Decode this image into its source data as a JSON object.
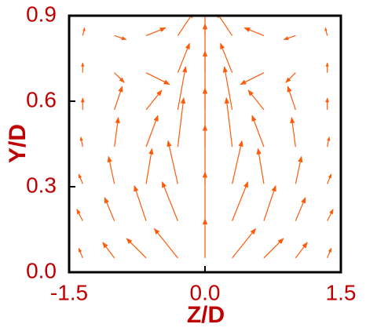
{
  "chart_data": {
    "type": "quiver",
    "xlabel": "Z/D",
    "ylabel": "Y/D",
    "xlim": [
      -1.5,
      1.5
    ],
    "ylim": [
      0,
      0.9
    ],
    "xticks": [
      -1.5,
      {
        "value": 0,
        "label": "0.0"
      },
      1.5
    ],
    "yticks": [
      {
        "value": 0,
        "label": "0.0"
      },
      0.3,
      0.6,
      0.9
    ],
    "color": "#ff5a0a",
    "x": [
      -1.35,
      -1.0,
      -0.65,
      -0.3,
      0,
      0.3,
      0.65,
      1.0,
      1.35,
      -1.35,
      -1.0,
      -0.65,
      -0.3,
      0,
      0.3,
      0.65,
      1.0,
      1.35,
      -1.35,
      -1.0,
      -0.65,
      -0.3,
      0,
      0.3,
      0.65,
      1.0,
      1.35,
      -1.35,
      -1.0,
      -0.65,
      -0.3,
      0,
      0.3,
      0.65,
      1.0,
      1.35,
      -1.35,
      -1.0,
      -0.65,
      -0.3,
      0,
      0.3,
      0.65,
      1.0,
      1.35,
      -1.35,
      -1.0,
      -0.65,
      -0.3,
      0,
      0.3,
      0.65,
      1.0,
      1.35,
      -1.35,
      -1.0,
      -0.65,
      -0.3,
      0,
      0.3,
      0.65,
      1.0,
      1.35
    ],
    "y": [
      0.05,
      0.05,
      0.05,
      0.05,
      0.05,
      0.05,
      0.05,
      0.05,
      0.05,
      0.18,
      0.18,
      0.18,
      0.18,
      0.18,
      0.18,
      0.18,
      0.18,
      0.18,
      0.31,
      0.31,
      0.31,
      0.31,
      0.31,
      0.31,
      0.31,
      0.31,
      0.31,
      0.44,
      0.44,
      0.44,
      0.44,
      0.44,
      0.44,
      0.44,
      0.44,
      0.44,
      0.57,
      0.57,
      0.57,
      0.57,
      0.57,
      0.57,
      0.57,
      0.57,
      0.57,
      0.7,
      0.7,
      0.7,
      0.7,
      0.7,
      0.7,
      0.7,
      0.7,
      0.7,
      0.83,
      0.83,
      0.83,
      0.83,
      0.83,
      0.83,
      0.83,
      0.83,
      0.83
    ],
    "u": [
      -0.2,
      -0.6,
      -1.0,
      -1.2,
      0,
      1.2,
      1.0,
      0.6,
      0.2,
      -0.3,
      -0.5,
      -0.6,
      -0.8,
      0,
      0.8,
      0.6,
      0.5,
      0.3,
      -0.2,
      -0.3,
      0.3,
      -0.5,
      0,
      0.5,
      -0.3,
      0.3,
      0.2,
      -0.1,
      0.2,
      0.6,
      0.3,
      0,
      -0.3,
      -0.6,
      -0.2,
      0.1,
      0,
      0.4,
      0.8,
      0.4,
      0,
      -0.4,
      -0.8,
      -0.4,
      0,
      0,
      0.5,
      1.2,
      0.6,
      0,
      -0.6,
      -1.2,
      -0.5,
      0,
      0.1,
      0.6,
      1.0,
      0.8,
      0,
      -0.8,
      -1.0,
      -0.6,
      -0.1
    ],
    "v": [
      0.5,
      0.8,
      1.0,
      1.5,
      2.0,
      1.5,
      1.0,
      0.8,
      0.5,
      0.6,
      1.2,
      1.8,
      2.0,
      2.5,
      2.0,
      1.8,
      1.2,
      0.6,
      0.5,
      1.4,
      1.8,
      2.2,
      3.0,
      2.2,
      1.8,
      1.4,
      0.5,
      0.5,
      1.5,
      1.6,
      2.5,
      3.0,
      2.5,
      1.6,
      1.5,
      0.5,
      0.6,
      1.2,
      1.0,
      2.2,
      3.0,
      2.2,
      1.0,
      1.2,
      0.6,
      0.5,
      -0.5,
      -0.6,
      1.5,
      2.5,
      1.5,
      -0.6,
      -0.5,
      0.5,
      0.4,
      -0.2,
      0.4,
      1.2,
      2.0,
      1.2,
      0.4,
      -0.2,
      0.4
    ]
  }
}
